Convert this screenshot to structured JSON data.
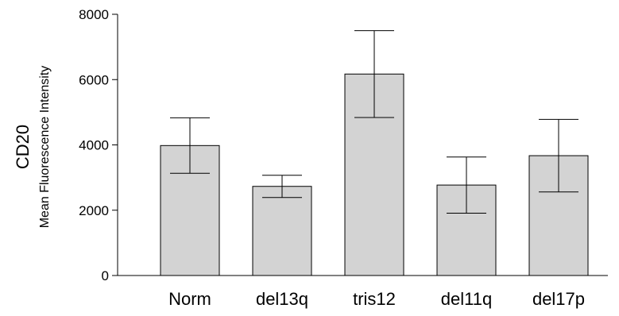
{
  "chart_data": {
    "type": "bar",
    "categories": [
      "Norm",
      "del13q",
      "tris12",
      "del11q",
      "del17p"
    ],
    "values": [
      3980,
      2730,
      6170,
      2770,
      3670
    ],
    "errors": [
      850,
      340,
      1330,
      860,
      1110
    ],
    "ylabel": "CD20",
    "ylabel_sub": "Mean Fluorescence Intensity",
    "ylim": [
      0,
      8000
    ],
    "yticks": [
      0,
      2000,
      4000,
      6000,
      8000
    ],
    "grid": false,
    "bar_color": "#d3d3d3",
    "line_color": "#000000"
  }
}
